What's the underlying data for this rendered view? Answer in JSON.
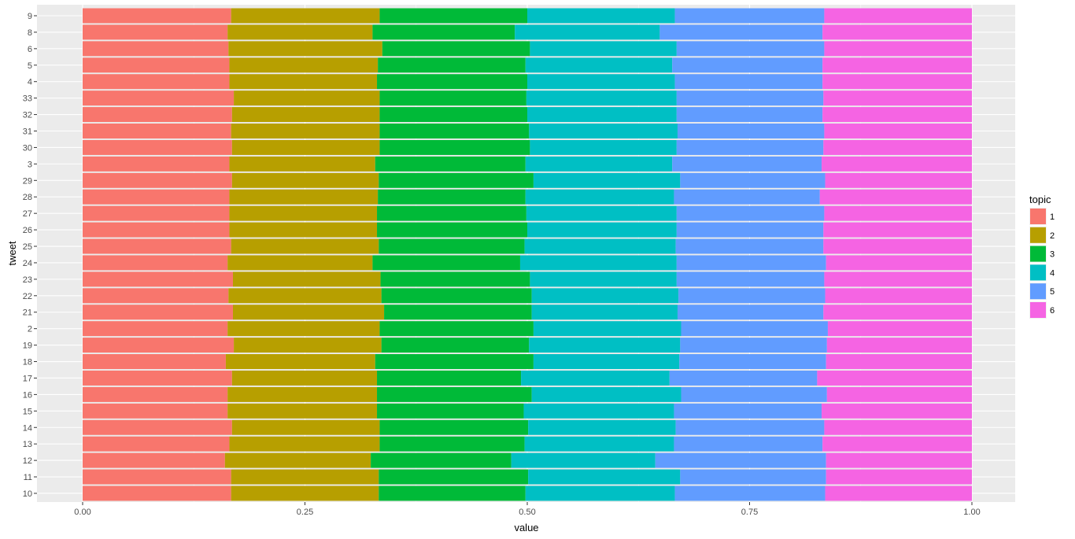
{
  "chart_data": {
    "type": "bar",
    "orientation": "horizontal",
    "stacked": true,
    "xlabel": "value",
    "ylabel": "tweet",
    "xlim": [
      0,
      1
    ],
    "x_ticks": [
      "0.00",
      "0.25",
      "0.50",
      "0.75",
      "1.00"
    ],
    "x_tick_values": [
      0,
      0.25,
      0.5,
      0.75,
      1.0
    ],
    "grid": true,
    "legend_title": "topic",
    "legend_position": "right",
    "categories": [
      "9",
      "8",
      "6",
      "5",
      "4",
      "33",
      "32",
      "31",
      "30",
      "3",
      "29",
      "28",
      "27",
      "26",
      "25",
      "24",
      "23",
      "22",
      "21",
      "2",
      "19",
      "18",
      "17",
      "16",
      "15",
      "14",
      "13",
      "12",
      "11",
      "10"
    ],
    "series": [
      {
        "name": "1",
        "color": "#F8766D",
        "values": [
          0.167,
          0.163,
          0.164,
          0.165,
          0.165,
          0.17,
          0.168,
          0.167,
          0.168,
          0.165,
          0.168,
          0.165,
          0.165,
          0.165,
          0.167,
          0.163,
          0.169,
          0.164,
          0.169,
          0.163,
          0.17,
          0.161,
          0.168,
          0.163,
          0.163,
          0.168,
          0.165,
          0.16,
          0.167,
          0.167
        ]
      },
      {
        "name": "2",
        "color": "#B79F00",
        "values": [
          0.167,
          0.163,
          0.173,
          0.167,
          0.166,
          0.164,
          0.166,
          0.167,
          0.166,
          0.164,
          0.165,
          0.167,
          0.166,
          0.166,
          0.166,
          0.163,
          0.166,
          0.172,
          0.17,
          0.171,
          0.166,
          0.168,
          0.163,
          0.168,
          0.168,
          0.166,
          0.169,
          0.164,
          0.166,
          0.166
        ]
      },
      {
        "name": "3",
        "color": "#00BA38",
        "values": [
          0.166,
          0.16,
          0.166,
          0.166,
          0.169,
          0.165,
          0.166,
          0.168,
          0.169,
          0.169,
          0.174,
          0.166,
          0.168,
          0.169,
          0.164,
          0.166,
          0.168,
          0.169,
          0.166,
          0.173,
          0.166,
          0.178,
          0.162,
          0.174,
          0.165,
          0.167,
          0.163,
          0.158,
          0.168,
          0.165
        ]
      },
      {
        "name": "4",
        "color": "#00BFC4",
        "values": [
          0.166,
          0.163,
          0.165,
          0.165,
          0.166,
          0.169,
          0.168,
          0.167,
          0.165,
          0.165,
          0.165,
          0.167,
          0.169,
          0.168,
          0.17,
          0.176,
          0.165,
          0.165,
          0.164,
          0.166,
          0.17,
          0.164,
          0.167,
          0.168,
          0.169,
          0.166,
          0.168,
          0.162,
          0.171,
          0.168
        ]
      },
      {
        "name": "5",
        "color": "#619CFF",
        "values": [
          0.168,
          0.183,
          0.166,
          0.169,
          0.166,
          0.165,
          0.164,
          0.165,
          0.165,
          0.168,
          0.163,
          0.164,
          0.166,
          0.165,
          0.166,
          0.168,
          0.166,
          0.165,
          0.164,
          0.165,
          0.165,
          0.165,
          0.166,
          0.164,
          0.166,
          0.167,
          0.167,
          0.192,
          0.164,
          0.169
        ]
      },
      {
        "name": "6",
        "color": "#F564E3",
        "values": [
          0.166,
          0.168,
          0.166,
          0.168,
          0.168,
          0.167,
          0.168,
          0.166,
          0.167,
          0.169,
          0.165,
          0.171,
          0.166,
          0.167,
          0.167,
          0.164,
          0.166,
          0.165,
          0.167,
          0.162,
          0.163,
          0.164,
          0.174,
          0.163,
          0.169,
          0.166,
          0.168,
          0.164,
          0.164,
          0.165
        ]
      }
    ]
  }
}
